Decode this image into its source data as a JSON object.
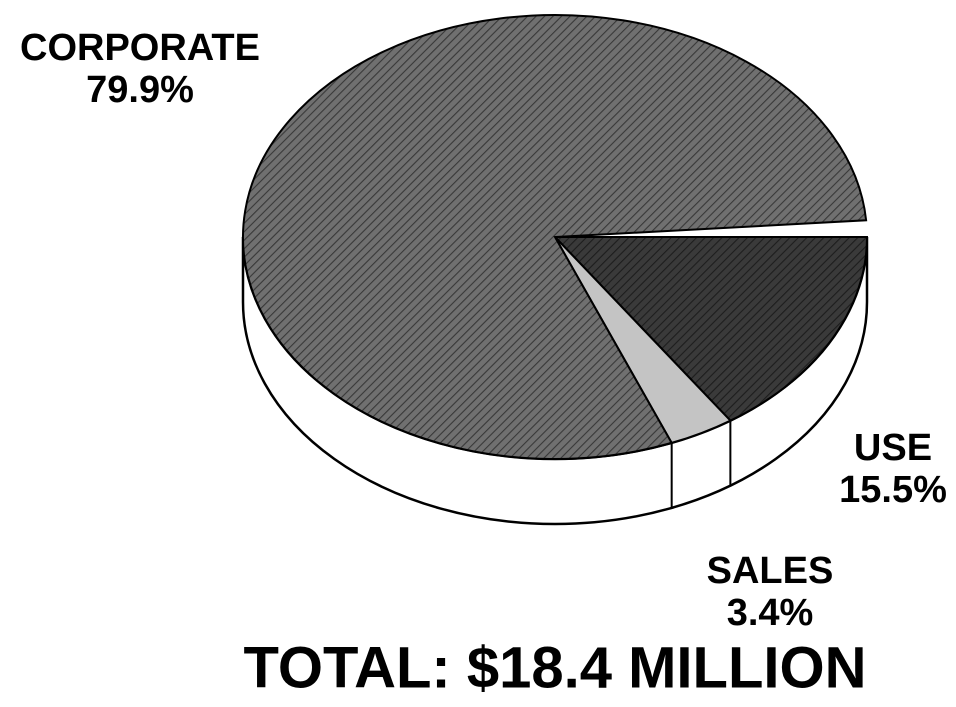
{
  "chart_data": {
    "type": "pie",
    "title": "TOTAL: $18.4 MILLION",
    "categories": [
      "USE",
      "SALES",
      "CORPORATE"
    ],
    "values": [
      15.5,
      3.4,
      79.9
    ],
    "value_labels": [
      "15.5%",
      "3.4%",
      "79.9%"
    ],
    "colors": [
      "#3a3a3a",
      "#c4c4c4",
      "#707070"
    ]
  }
}
